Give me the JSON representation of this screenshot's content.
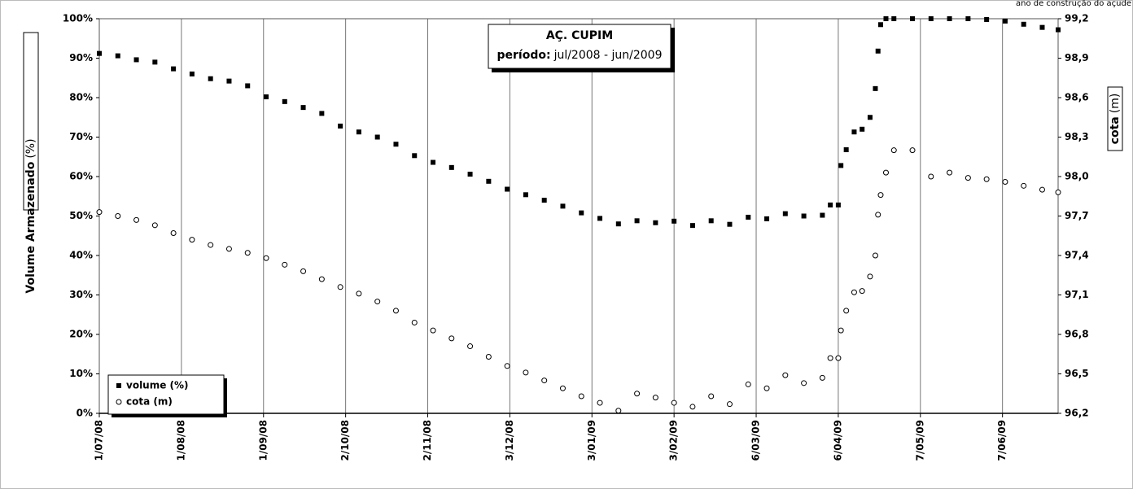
{
  "chart_data": {
    "type": "scatter",
    "title": "AÇ. CUPIM",
    "subtitle_label": "período:",
    "subtitle_value": "jul/2008 - jun/2009",
    "annotation": "ano de construção do açude",
    "y_label": "Volume Armazenado",
    "y_label_unit": "(%)",
    "y2_label": "cota",
    "y2_label_unit": "(m)",
    "legend": "lower left",
    "grid": true,
    "x": [
      "2008-07-01",
      "2008-07-08",
      "2008-07-15",
      "2008-07-22",
      "2008-07-29",
      "2008-08-05",
      "2008-08-12",
      "2008-08-19",
      "2008-08-26",
      "2008-09-02",
      "2008-09-09",
      "2008-09-16",
      "2008-09-23",
      "2008-09-30",
      "2008-10-07",
      "2008-10-14",
      "2008-10-21",
      "2008-10-28",
      "2008-11-04",
      "2008-11-11",
      "2008-11-18",
      "2008-11-25",
      "2008-12-02",
      "2008-12-09",
      "2008-12-16",
      "2008-12-23",
      "2008-12-30",
      "2009-01-06",
      "2009-01-13",
      "2009-01-20",
      "2009-01-27",
      "2009-02-03",
      "2009-02-10",
      "2009-02-17",
      "2009-02-24",
      "2009-03-03",
      "2009-03-10",
      "2009-03-17",
      "2009-03-24",
      "2009-03-31",
      "2009-04-03",
      "2009-04-06",
      "2009-04-07",
      "2009-04-09",
      "2009-04-12",
      "2009-04-15",
      "2009-04-18",
      "2009-04-20",
      "2009-04-21",
      "2009-04-22",
      "2009-04-24",
      "2009-04-27",
      "2009-05-04",
      "2009-05-11",
      "2009-05-18",
      "2009-05-25",
      "2009-06-01",
      "2009-06-08",
      "2009-06-15",
      "2009-06-22",
      "2009-06-28"
    ],
    "xlim": [
      "2008-07-01",
      "2009-06-28"
    ],
    "xticks": [
      {
        "value": "2008-07-01",
        "label": "1/07/08"
      },
      {
        "value": "2008-08-01",
        "label": "1/08/08"
      },
      {
        "value": "2008-09-01",
        "label": "1/09/08"
      },
      {
        "value": "2008-10-02",
        "label": "2/10/08"
      },
      {
        "value": "2008-11-02",
        "label": "2/11/08"
      },
      {
        "value": "2008-12-03",
        "label": "3/12/08"
      },
      {
        "value": "2009-01-03",
        "label": "3/01/09"
      },
      {
        "value": "2009-02-03",
        "label": "3/02/09"
      },
      {
        "value": "2009-03-06",
        "label": "6/03/09"
      },
      {
        "value": "2009-04-06",
        "label": "6/04/09"
      },
      {
        "value": "2009-05-07",
        "label": "7/05/09"
      },
      {
        "value": "2009-06-07",
        "label": "7/06/09"
      }
    ],
    "ylim": [
      0,
      100
    ],
    "yticks": [
      {
        "value": 0,
        "label": "0%"
      },
      {
        "value": 10,
        "label": "10%"
      },
      {
        "value": 20,
        "label": "20%"
      },
      {
        "value": 30,
        "label": "30%"
      },
      {
        "value": 40,
        "label": "40%"
      },
      {
        "value": 50,
        "label": "50%"
      },
      {
        "value": 60,
        "label": "60%"
      },
      {
        "value": 70,
        "label": "70%"
      },
      {
        "value": 80,
        "label": "80%"
      },
      {
        "value": 90,
        "label": "90%"
      },
      {
        "value": 100,
        "label": "100%"
      }
    ],
    "y2lim": [
      96.2,
      99.2
    ],
    "y2ticks": [
      {
        "value": 96.2,
        "label": "96,2"
      },
      {
        "value": 96.5,
        "label": "96,5"
      },
      {
        "value": 96.8,
        "label": "96,8"
      },
      {
        "value": 97.1,
        "label": "97,1"
      },
      {
        "value": 97.4,
        "label": "97,4"
      },
      {
        "value": 97.7,
        "label": "97,7"
      },
      {
        "value": 98.0,
        "label": "98,0"
      },
      {
        "value": 98.3,
        "label": "98,3"
      },
      {
        "value": 98.6,
        "label": "98,6"
      },
      {
        "value": 98.9,
        "label": "98,9"
      },
      {
        "value": 99.2,
        "label": "99,2"
      }
    ],
    "series": [
      {
        "name": "volume (%)",
        "color": "#000000",
        "marker": "square",
        "values": [
          91.2,
          90.6,
          89.6,
          89,
          87.3,
          86,
          84.8,
          84.2,
          83,
          80.2,
          79,
          77.5,
          76,
          72.8,
          71.3,
          70,
          68.2,
          65.3,
          63.6,
          62.3,
          60.6,
          58.8,
          56.8,
          55.4,
          54,
          52.5,
          50.8,
          49.4,
          48,
          48.8,
          48.3,
          48.7,
          47.6,
          48.8,
          47.9,
          49.7,
          49.3,
          50.6,
          50,
          50.2,
          52.8,
          52.8,
          62.8,
          66.8,
          71.3,
          72,
          75,
          82.3,
          91.8,
          98.5,
          100,
          100,
          100,
          100,
          100,
          100,
          99.8,
          99.4,
          98.6,
          97.8,
          97.2
        ]
      },
      {
        "name": "cota (m)",
        "color": "#000000",
        "marker": "circle",
        "axis": "y2",
        "values": [
          97.73,
          97.7,
          97.67,
          97.63,
          97.57,
          97.52,
          97.48,
          97.45,
          97.42,
          97.38,
          97.33,
          97.28,
          97.22,
          97.16,
          97.11,
          97.05,
          96.98,
          96.89,
          96.83,
          96.77,
          96.71,
          96.63,
          96.56,
          96.51,
          96.45,
          96.39,
          96.33,
          96.28,
          96.22,
          96.35,
          96.32,
          96.28,
          96.25,
          96.33,
          96.27,
          96.42,
          96.39,
          96.49,
          96.43,
          96.47,
          96.62,
          96.62,
          96.83,
          96.98,
          97.12,
          97.13,
          97.24,
          97.4,
          97.71,
          97.86,
          98.03,
          98.2,
          98.2,
          98.0,
          98.03,
          97.99,
          97.98,
          97.96,
          97.93,
          97.9,
          97.88
        ]
      }
    ]
  }
}
